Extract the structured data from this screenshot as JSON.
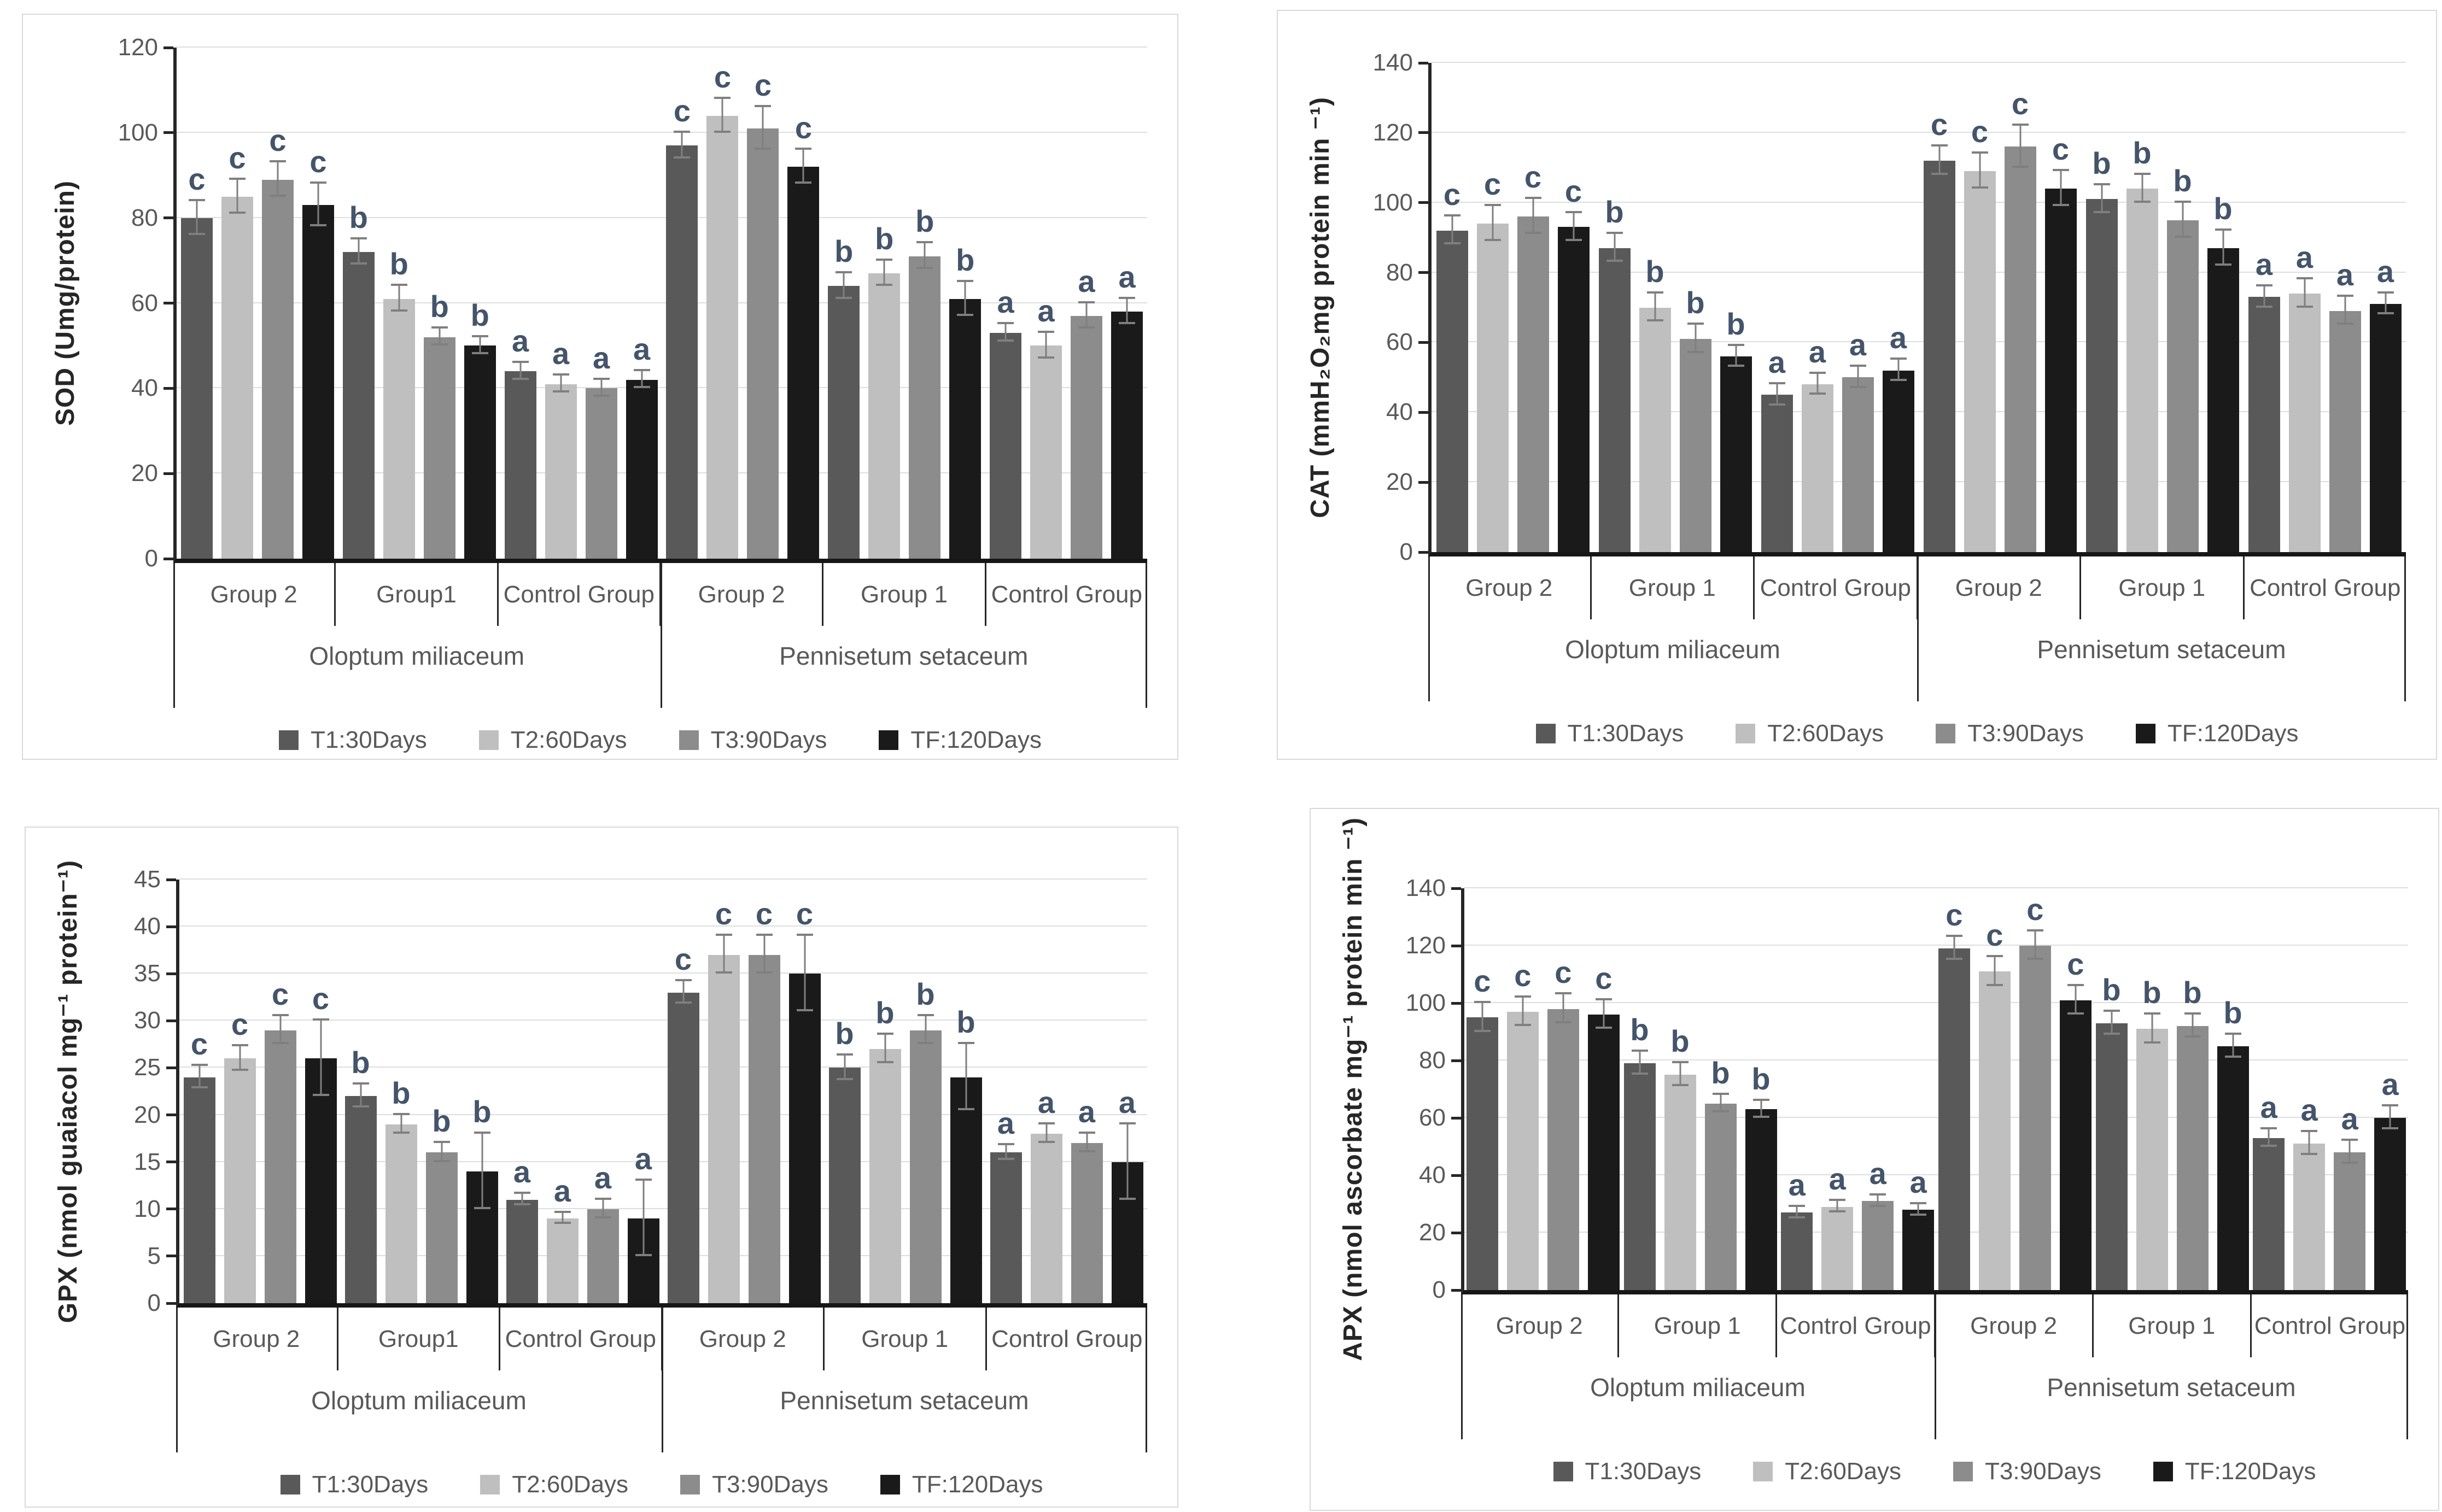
{
  "page": {
    "background": "#ffffff",
    "panel_border": "#d9d9d9"
  },
  "legend": {
    "series": [
      {
        "label": "T1:30Days",
        "color": "#595959"
      },
      {
        "label": "T2:60Days",
        "color": "#bfbfbf"
      },
      {
        "label": "T3:90Days",
        "color": "#8c8c8c"
      },
      {
        "label": "TF:120Days",
        "color": "#1a1a1a"
      }
    ]
  },
  "chart_data": [
    {
      "id": "sod",
      "type": "bar",
      "title": "",
      "xlabel": "",
      "ylabel": "SOD (Umg/protein)",
      "ylim": [
        0,
        120
      ],
      "ytick_step": 20,
      "grid": true,
      "legend_position": "bottom",
      "sig_color": "#44546a",
      "species": [
        {
          "label": "Oloptum miliaceum",
          "groups": [
            {
              "label": "Group 2",
              "values": [
                80,
                85,
                89,
                83
              ],
              "errors": [
                4,
                4,
                4,
                5
              ],
              "letters": [
                "c",
                "c",
                "c",
                "c"
              ]
            },
            {
              "label": "Group1",
              "values": [
                72,
                61,
                52,
                50
              ],
              "errors": [
                3,
                3,
                2,
                2
              ],
              "letters": [
                "b",
                "b",
                "b",
                "b"
              ]
            },
            {
              "label": "Control Group",
              "values": [
                44,
                41,
                40,
                42
              ],
              "errors": [
                2,
                2,
                2,
                2
              ],
              "letters": [
                "a",
                "a",
                "a",
                "a"
              ]
            }
          ]
        },
        {
          "label": "Pennisetum setaceum",
          "groups": [
            {
              "label": "Group 2",
              "values": [
                97,
                104,
                101,
                92
              ],
              "errors": [
                3,
                4,
                5,
                4
              ],
              "letters": [
                "c",
                "c",
                "c",
                "c"
              ]
            },
            {
              "label": "Group 1",
              "values": [
                64,
                67,
                71,
                61
              ],
              "errors": [
                3,
                3,
                3,
                4
              ],
              "letters": [
                "b",
                "b",
                "b",
                "b"
              ]
            },
            {
              "label": "Control Group",
              "values": [
                53,
                50,
                57,
                58
              ],
              "errors": [
                2,
                3,
                3,
                3
              ],
              "letters": [
                "a",
                "a",
                "a",
                "a"
              ]
            }
          ]
        }
      ]
    },
    {
      "id": "cat",
      "type": "bar",
      "title": "",
      "xlabel": "",
      "ylabel": "CAT (mmH₂O₂mg protein min ⁻¹)",
      "ylim": [
        0,
        140
      ],
      "ytick_step": 20,
      "grid": true,
      "legend_position": "bottom",
      "sig_color": "#44546a",
      "species": [
        {
          "label": "Oloptum miliaceum",
          "groups": [
            {
              "label": "Group 2",
              "values": [
                92,
                94,
                96,
                93
              ],
              "errors": [
                4,
                5,
                5,
                4
              ],
              "letters": [
                "c",
                "c",
                "c",
                "c"
              ]
            },
            {
              "label": "Group 1",
              "values": [
                87,
                70,
                61,
                56
              ],
              "errors": [
                4,
                4,
                4,
                3
              ],
              "letters": [
                "b",
                "b",
                "b",
                "b"
              ]
            },
            {
              "label": "Control Group",
              "values": [
                45,
                48,
                50,
                52
              ],
              "errors": [
                3,
                3,
                3,
                3
              ],
              "letters": [
                "a",
                "a",
                "a",
                "a"
              ]
            }
          ]
        },
        {
          "label": "Pennisetum setaceum",
          "groups": [
            {
              "label": "Group 2",
              "values": [
                112,
                109,
                116,
                104
              ],
              "errors": [
                4,
                5,
                6,
                5
              ],
              "letters": [
                "c",
                "c",
                "c",
                "c"
              ]
            },
            {
              "label": "Group 1",
              "values": [
                101,
                104,
                95,
                87
              ],
              "errors": [
                4,
                4,
                5,
                5
              ],
              "letters": [
                "b",
                "b",
                "b",
                "b"
              ]
            },
            {
              "label": "Control Group",
              "values": [
                73,
                74,
                69,
                71
              ],
              "errors": [
                3,
                4,
                4,
                3
              ],
              "letters": [
                "a",
                "a",
                "a",
                "a"
              ]
            }
          ]
        }
      ]
    },
    {
      "id": "gpx",
      "type": "bar",
      "title": "",
      "xlabel": "",
      "ylabel": "GPX (nmol guaiacol mg⁻¹ protein⁻¹)",
      "ylim": [
        0,
        45
      ],
      "ytick_step": 5,
      "grid": true,
      "legend_position": "bottom",
      "sig_color": "#44546a",
      "species": [
        {
          "label": "Oloptum miliaceum",
          "groups": [
            {
              "label": "Group 2",
              "values": [
                24,
                26,
                29,
                26
              ],
              "errors": [
                1.2,
                1.3,
                1.5,
                4
              ],
              "letters": [
                "c",
                "c",
                "c",
                "c"
              ]
            },
            {
              "label": "Group1",
              "values": [
                22,
                19,
                16,
                14
              ],
              "errors": [
                1.2,
                1,
                1,
                4
              ],
              "letters": [
                "b",
                "b",
                "b",
                "b"
              ]
            },
            {
              "label": "Control Group",
              "values": [
                11,
                9,
                10,
                9
              ],
              "errors": [
                0.6,
                0.6,
                1,
                4
              ],
              "letters": [
                "a",
                "a",
                "a",
                "a"
              ]
            }
          ]
        },
        {
          "label": "Pennisetum setaceum",
          "groups": [
            {
              "label": "Group 2",
              "values": [
                33,
                37,
                37,
                35
              ],
              "errors": [
                1.2,
                2,
                2,
                4
              ],
              "letters": [
                "c",
                "c",
                "c",
                "c"
              ]
            },
            {
              "label": "Group 1",
              "values": [
                25,
                27,
                29,
                24
              ],
              "errors": [
                1.3,
                1.5,
                1.5,
                3.5
              ],
              "letters": [
                "b",
                "b",
                "b",
                "b"
              ]
            },
            {
              "label": "Control Group",
              "values": [
                16,
                18,
                17,
                15
              ],
              "errors": [
                0.8,
                1,
                1,
                4
              ],
              "letters": [
                "a",
                "a",
                "a",
                "a"
              ]
            }
          ]
        }
      ]
    },
    {
      "id": "apx",
      "type": "bar",
      "title": "",
      "xlabel": "",
      "ylabel": "APX (nmol ascorbate mg⁻¹ protein min ⁻¹)",
      "ylim": [
        0,
        140
      ],
      "ytick_step": 20,
      "grid": true,
      "legend_position": "bottom",
      "sig_color": "#44546a",
      "species": [
        {
          "label": "Oloptum miliaceum",
          "groups": [
            {
              "label": "Group 2",
              "values": [
                95,
                97,
                98,
                96
              ],
              "errors": [
                5,
                5,
                5,
                5
              ],
              "letters": [
                "c",
                "c",
                "c",
                "c"
              ]
            },
            {
              "label": "Group 1",
              "values": [
                79,
                75,
                65,
                63
              ],
              "errors": [
                4,
                4,
                3,
                3
              ],
              "letters": [
                "b",
                "b",
                "b",
                "b"
              ]
            },
            {
              "label": "Control Group",
              "values": [
                27,
                29,
                31,
                28
              ],
              "errors": [
                2,
                2,
                2,
                2
              ],
              "letters": [
                "a",
                "a",
                "a",
                "a"
              ]
            }
          ]
        },
        {
          "label": "Pennisetum setaceum",
          "groups": [
            {
              "label": "Group 2",
              "values": [
                119,
                111,
                120,
                101
              ],
              "errors": [
                4,
                5,
                5,
                5
              ],
              "letters": [
                "c",
                "c",
                "c",
                "c"
              ]
            },
            {
              "label": "Group 1",
              "values": [
                93,
                91,
                92,
                85
              ],
              "errors": [
                4,
                5,
                4,
                4
              ],
              "letters": [
                "b",
                "b",
                "b",
                "b"
              ]
            },
            {
              "label": "Control Group",
              "values": [
                53,
                51,
                48,
                60
              ],
              "errors": [
                3,
                4,
                4,
                4
              ],
              "letters": [
                "a",
                "a",
                "a",
                "a"
              ]
            }
          ]
        }
      ]
    }
  ]
}
